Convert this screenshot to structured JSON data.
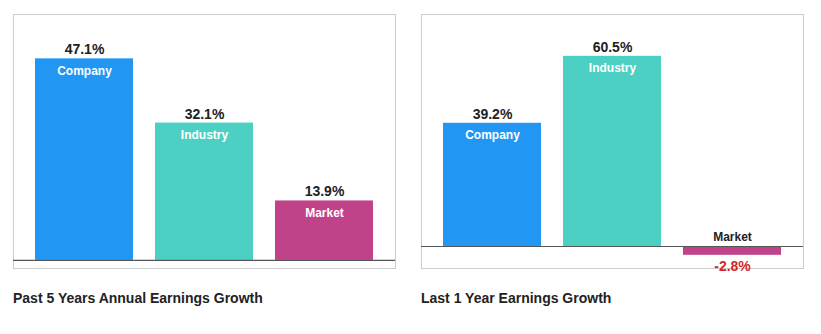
{
  "chart_data": [
    {
      "type": "bar",
      "title": "Past 5 Years Annual Earnings Growth",
      "categories": [
        "Company",
        "Industry",
        "Market"
      ],
      "values": [
        47.1,
        32.1,
        13.9
      ],
      "value_labels": [
        "47.1%",
        "32.1%",
        "13.9%"
      ],
      "colors": [
        "#2196f3",
        "#4dd0c4",
        "#c0438a"
      ],
      "ylim": [
        -1.884,
        57.462
      ],
      "data_labels": true,
      "tick_labels": false
    },
    {
      "type": "bar",
      "title": "Last 1 Year Earnings Growth",
      "categories": [
        "Company",
        "Industry",
        "Market"
      ],
      "values": [
        39.2,
        60.5,
        -2.8
      ],
      "value_labels": [
        "39.2%",
        "60.5%",
        "-2.8%"
      ],
      "colors": [
        "#2196f3",
        "#4dd0c4",
        "#c0438a"
      ],
      "ylim": [
        -7.0,
        73.81
      ],
      "data_labels": true,
      "tick_labels": false
    }
  ]
}
